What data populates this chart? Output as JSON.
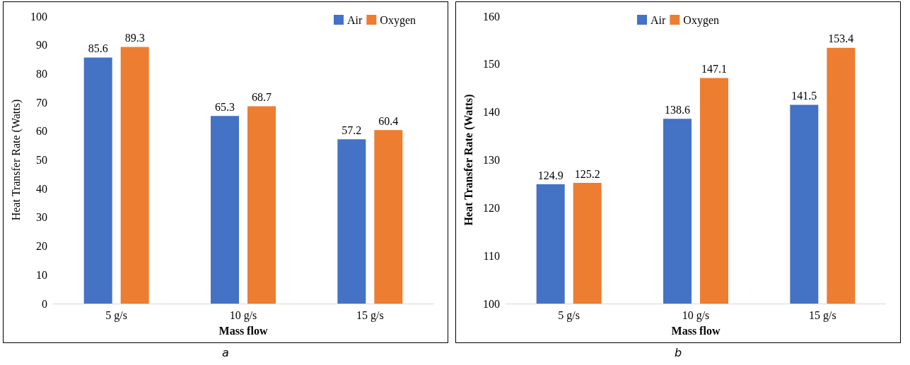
{
  "chart_data": [
    {
      "type": "bar",
      "xlabel": "Mass flow",
      "ylabel": "Heat Transfer Rate (Watts)",
      "categories": [
        "5 g/s",
        "10 g/s",
        "15 g/s"
      ],
      "series": [
        {
          "name": "Air",
          "color": "#4472c4",
          "values": [
            85.6,
            65.3,
            57.2
          ]
        },
        {
          "name": "Oxygen",
          "color": "#ed7d31",
          "values": [
            89.3,
            68.7,
            60.4
          ]
        }
      ],
      "ylim": [
        0,
        100
      ],
      "yticks": [
        0,
        10,
        20,
        30,
        40,
        50,
        60,
        70,
        80,
        90,
        100
      ],
      "grid": false,
      "legend": "top right",
      "data_labels": true,
      "annotations": [
        "a"
      ]
    },
    {
      "type": "bar",
      "xlabel": "Mass flow",
      "ylabel": "Heat Transfer Rate (Watts)",
      "categories": [
        "5 g/s",
        "10 g/s",
        "15 g/s"
      ],
      "series": [
        {
          "name": "Air",
          "color": "#4472c4",
          "values": [
            124.9,
            138.6,
            141.5
          ]
        },
        {
          "name": "Oxygen",
          "color": "#ed7d31",
          "values": [
            125.2,
            147.1,
            153.4
          ]
        }
      ],
      "ylim": [
        100,
        160
      ],
      "yticks": [
        100,
        110,
        120,
        130,
        140,
        150,
        160
      ],
      "grid": false,
      "legend": "top",
      "data_labels": true,
      "annotations": [
        "b"
      ]
    }
  ]
}
